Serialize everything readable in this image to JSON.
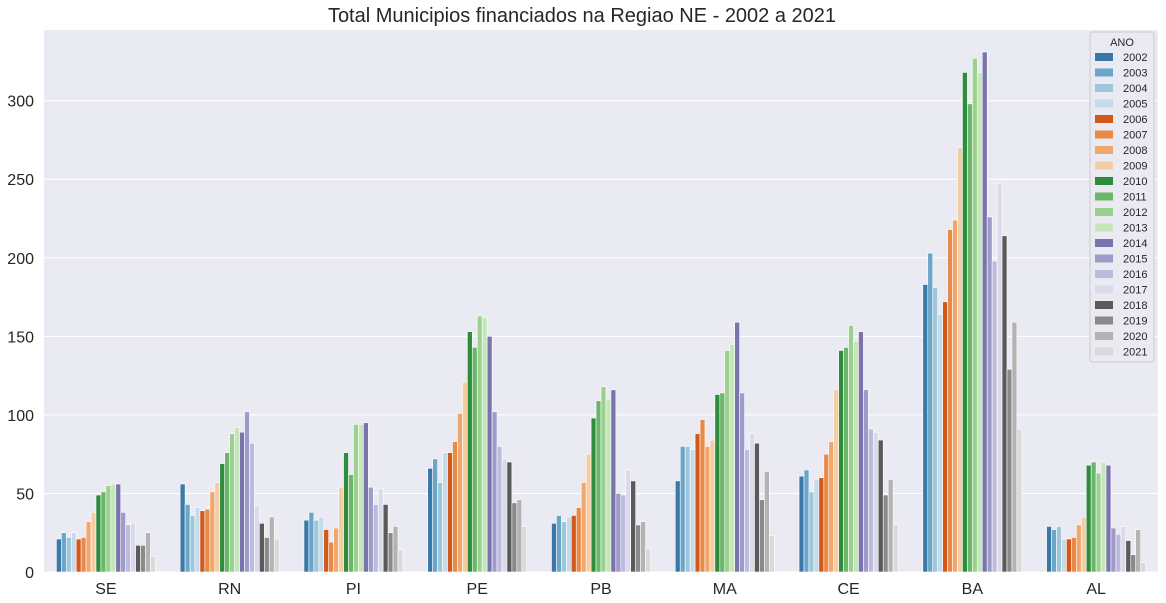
{
  "chart_data": {
    "type": "bar",
    "title": "Total Municipios financiados na Regiao NE - 2002 a 2021",
    "xlabel": "",
    "ylabel": "",
    "ylim": [
      0,
      345
    ],
    "yticks": [
      0,
      50,
      100,
      150,
      200,
      250,
      300
    ],
    "grid": true,
    "legend_title": "ANO",
    "legend_position": "top-right",
    "categories": [
      "SE",
      "RN",
      "PI",
      "PE",
      "PB",
      "MA",
      "CE",
      "BA",
      "AL"
    ],
    "series": [
      {
        "name": "2002",
        "color": "#3b78a8",
        "values": [
          21,
          56,
          33,
          66,
          31,
          58,
          61,
          183,
          29
        ]
      },
      {
        "name": "2003",
        "color": "#6aa6c8",
        "values": [
          25,
          43,
          38,
          72,
          36,
          80,
          65,
          203,
          27
        ]
      },
      {
        "name": "2004",
        "color": "#9ec6db",
        "values": [
          22,
          36,
          33,
          57,
          32,
          80,
          51,
          181,
          29
        ]
      },
      {
        "name": "2005",
        "color": "#c6dbe9",
        "values": [
          25,
          41,
          35,
          76,
          35,
          78,
          59,
          164,
          21
        ]
      },
      {
        "name": "2006",
        "color": "#d2591b",
        "values": [
          21,
          39,
          27,
          76,
          36,
          88,
          60,
          172,
          21
        ]
      },
      {
        "name": "2007",
        "color": "#e88a47",
        "values": [
          22,
          40,
          19,
          83,
          41,
          97,
          75,
          218,
          22
        ]
      },
      {
        "name": "2008",
        "color": "#f0a76e",
        "values": [
          32,
          51,
          28,
          101,
          57,
          80,
          83,
          224,
          30
        ]
      },
      {
        "name": "2009",
        "color": "#f5cda4",
        "values": [
          38,
          57,
          54,
          121,
          75,
          84,
          116,
          270,
          35
        ]
      },
      {
        "name": "2010",
        "color": "#2e8c3c",
        "values": [
          49,
          69,
          76,
          153,
          98,
          113,
          141,
          318,
          68
        ]
      },
      {
        "name": "2011",
        "color": "#6ab66a",
        "values": [
          51,
          76,
          62,
          143,
          109,
          114,
          143,
          298,
          70
        ]
      },
      {
        "name": "2012",
        "color": "#9bd18f",
        "values": [
          55,
          88,
          94,
          163,
          118,
          141,
          157,
          327,
          63
        ]
      },
      {
        "name": "2013",
        "color": "#c5e5bb",
        "values": [
          56,
          92,
          94,
          162,
          110,
          145,
          147,
          318,
          70
        ]
      },
      {
        "name": "2014",
        "color": "#7a74ad",
        "values": [
          56,
          89,
          95,
          150,
          116,
          159,
          153,
          331,
          68
        ]
      },
      {
        "name": "2015",
        "color": "#9e9aca",
        "values": [
          38,
          102,
          54,
          102,
          50,
          114,
          116,
          226,
          28
        ]
      },
      {
        "name": "2016",
        "color": "#bdbbdb",
        "values": [
          30,
          82,
          43,
          80,
          49,
          78,
          91,
          198,
          24
        ]
      },
      {
        "name": "2017",
        "color": "#dadaea",
        "values": [
          31,
          42,
          53,
          72,
          65,
          88,
          89,
          247,
          29
        ]
      },
      {
        "name": "2018",
        "color": "#5a5a5a",
        "values": [
          17,
          31,
          43,
          70,
          58,
          82,
          84,
          214,
          20
        ]
      },
      {
        "name": "2019",
        "color": "#8a8a8a",
        "values": [
          17,
          22,
          25,
          44,
          30,
          46,
          49,
          129,
          11
        ]
      },
      {
        "name": "2020",
        "color": "#b3b3b3",
        "values": [
          25,
          35,
          29,
          46,
          32,
          64,
          59,
          159,
          27
        ]
      },
      {
        "name": "2021",
        "color": "#d9d9d9",
        "values": [
          10,
          21,
          14,
          29,
          15,
          23,
          30,
          91,
          6
        ]
      }
    ],
    "colors": {
      "background": "#eaeaf2",
      "grid": "#ffffff",
      "text": "#262626"
    }
  }
}
